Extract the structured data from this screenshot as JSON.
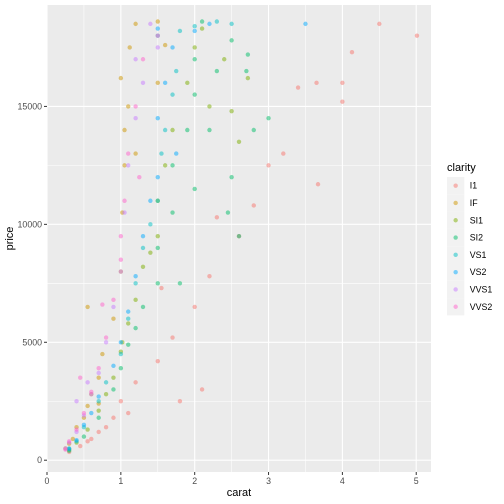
{
  "chart_data": {
    "type": "scatter",
    "title": "",
    "xlabel": "carat",
    "ylabel": "price",
    "xlim": [
      0,
      5.2
    ],
    "ylim": [
      -500,
      19300
    ],
    "x_ticks": [
      0,
      1,
      2,
      3,
      4,
      5
    ],
    "y_ticks": [
      0,
      5000,
      10000,
      15000
    ],
    "grid": true,
    "panel_background": "#ebebeb",
    "legend": {
      "title": "clarity",
      "position": "right",
      "entries": [
        {
          "label": "I1",
          "color": "#F8766D"
        },
        {
          "label": "IF",
          "color": "#CD9600"
        },
        {
          "label": "SI1",
          "color": "#7CAE00"
        },
        {
          "label": "SI2",
          "color": "#00BE67"
        },
        {
          "label": "VS1",
          "color": "#00BFC4"
        },
        {
          "label": "VS2",
          "color": "#00A9FF"
        },
        {
          "label": "VVS1",
          "color": "#C77CFF"
        },
        {
          "label": "VVS2",
          "color": "#FF61CC"
        }
      ]
    },
    "point_alpha": 0.5,
    "series": [
      {
        "name": "I1",
        "color": "#F8766D",
        "points": [
          [
            0.3,
            350
          ],
          [
            0.45,
            600
          ],
          [
            0.55,
            800
          ],
          [
            0.7,
            1200
          ],
          [
            0.9,
            1800
          ],
          [
            1.0,
            2500
          ],
          [
            1.2,
            3300
          ],
          [
            1.5,
            4200
          ],
          [
            1.7,
            5200
          ],
          [
            2.0,
            6500
          ],
          [
            2.2,
            7800
          ],
          [
            2.6,
            9500
          ],
          [
            2.8,
            10800
          ],
          [
            3.0,
            12500
          ],
          [
            3.2,
            13000
          ],
          [
            3.4,
            15800
          ],
          [
            3.65,
            16000
          ],
          [
            4.0,
            16000
          ],
          [
            4.0,
            15200
          ],
          [
            4.13,
            17300
          ],
          [
            4.5,
            18500
          ],
          [
            5.01,
            18000
          ],
          [
            3.67,
            11700
          ],
          [
            1.8,
            2500
          ],
          [
            2.3,
            10300
          ],
          [
            2.1,
            3000
          ],
          [
            1.55,
            7300
          ],
          [
            0.6,
            900
          ],
          [
            0.8,
            1400
          ],
          [
            1.1,
            2000
          ]
        ]
      },
      {
        "name": "IF",
        "color": "#CD9600",
        "points": [
          [
            0.25,
            500
          ],
          [
            0.3,
            700
          ],
          [
            0.35,
            900
          ],
          [
            0.4,
            1400
          ],
          [
            0.5,
            1800
          ],
          [
            0.55,
            2300
          ],
          [
            0.6,
            2800
          ],
          [
            0.7,
            3500
          ],
          [
            0.75,
            4500
          ],
          [
            0.9,
            6000
          ],
          [
            1.0,
            8000
          ],
          [
            1.02,
            10500
          ],
          [
            1.05,
            12500
          ],
          [
            1.1,
            15000
          ],
          [
            1.12,
            17500
          ],
          [
            1.2,
            18500
          ],
          [
            1.0,
            16200
          ],
          [
            1.05,
            14000
          ],
          [
            1.2,
            13000
          ],
          [
            1.5,
            16000
          ],
          [
            1.5,
            18600
          ],
          [
            1.6,
            17600
          ],
          [
            0.55,
            6500
          ],
          [
            0.7,
            2400
          ]
        ]
      },
      {
        "name": "SI1",
        "color": "#7CAE00",
        "points": [
          [
            0.3,
            450
          ],
          [
            0.4,
            750
          ],
          [
            0.55,
            1300
          ],
          [
            0.7,
            2100
          ],
          [
            0.8,
            2800
          ],
          [
            0.9,
            3500
          ],
          [
            1.0,
            4600
          ],
          [
            1.02,
            5000
          ],
          [
            1.1,
            5800
          ],
          [
            1.2,
            6800
          ],
          [
            1.3,
            8200
          ],
          [
            1.5,
            9500
          ],
          [
            1.5,
            11000
          ],
          [
            1.6,
            12500
          ],
          [
            1.7,
            14000
          ],
          [
            1.9,
            16000
          ],
          [
            2.0,
            17500
          ],
          [
            2.1,
            18300
          ],
          [
            2.2,
            15000
          ],
          [
            2.4,
            17000
          ],
          [
            2.5,
            14800
          ],
          [
            2.6,
            13500
          ],
          [
            2.72,
            16200
          ],
          [
            1.4,
            8800
          ]
        ]
      },
      {
        "name": "SI2",
        "color": "#00BE67",
        "points": [
          [
            0.3,
            400
          ],
          [
            0.5,
            1000
          ],
          [
            0.7,
            1800
          ],
          [
            0.9,
            3000
          ],
          [
            1.0,
            3900
          ],
          [
            1.1,
            4900
          ],
          [
            1.2,
            5600
          ],
          [
            1.3,
            6500
          ],
          [
            1.5,
            7500
          ],
          [
            1.5,
            9000
          ],
          [
            1.7,
            10500
          ],
          [
            1.7,
            12500
          ],
          [
            1.9,
            14000
          ],
          [
            2.0,
            15500
          ],
          [
            2.0,
            17000
          ],
          [
            2.1,
            18600
          ],
          [
            2.2,
            14000
          ],
          [
            2.3,
            16500
          ],
          [
            2.5,
            17800
          ],
          [
            2.5,
            12000
          ],
          [
            2.7,
            16500
          ],
          [
            2.72,
            17200
          ],
          [
            3.0,
            14500
          ],
          [
            2.0,
            11500
          ],
          [
            2.45,
            10500
          ],
          [
            2.6,
            9500
          ],
          [
            1.8,
            7500
          ],
          [
            2.8,
            14000
          ]
        ]
      },
      {
        "name": "VS1",
        "color": "#00BFC4",
        "points": [
          [
            0.3,
            500
          ],
          [
            0.4,
            800
          ],
          [
            0.5,
            1400
          ],
          [
            0.7,
            2500
          ],
          [
            0.8,
            3300
          ],
          [
            1.0,
            4500
          ],
          [
            1.1,
            6000
          ],
          [
            1.2,
            7500
          ],
          [
            1.3,
            9000
          ],
          [
            1.5,
            11000
          ],
          [
            1.55,
            13000
          ],
          [
            1.7,
            15500
          ],
          [
            1.75,
            16500
          ],
          [
            1.8,
            18200
          ],
          [
            1.5,
            18000
          ],
          [
            2.0,
            18400
          ],
          [
            2.3,
            18600
          ],
          [
            2.5,
            18500
          ],
          [
            1.4,
            10000
          ],
          [
            1.6,
            14000
          ]
        ]
      },
      {
        "name": "VS2",
        "color": "#00A9FF",
        "points": [
          [
            0.3,
            480
          ],
          [
            0.4,
            850
          ],
          [
            0.5,
            1500
          ],
          [
            0.6,
            2000
          ],
          [
            0.7,
            2700
          ],
          [
            0.9,
            4000
          ],
          [
            1.0,
            5000
          ],
          [
            1.1,
            6300
          ],
          [
            1.2,
            7800
          ],
          [
            1.3,
            9500
          ],
          [
            1.5,
            12000
          ],
          [
            1.5,
            14500
          ],
          [
            1.6,
            16000
          ],
          [
            1.7,
            17500
          ],
          [
            1.5,
            18300
          ],
          [
            2.0,
            18200
          ],
          [
            2.2,
            18500
          ],
          [
            3.5,
            18500
          ],
          [
            1.4,
            11000
          ],
          [
            1.75,
            13000
          ]
        ]
      },
      {
        "name": "VVS1",
        "color": "#C77CFF",
        "points": [
          [
            0.25,
            500
          ],
          [
            0.3,
            750
          ],
          [
            0.4,
            1200
          ],
          [
            0.5,
            1900
          ],
          [
            0.6,
            2800
          ],
          [
            0.7,
            3700
          ],
          [
            0.8,
            5000
          ],
          [
            0.9,
            6500
          ],
          [
            1.0,
            8000
          ],
          [
            1.05,
            10500
          ],
          [
            1.1,
            12500
          ],
          [
            1.2,
            14500
          ],
          [
            1.3,
            16000
          ],
          [
            1.5,
            17500
          ],
          [
            1.4,
            18500
          ],
          [
            1.2,
            17000
          ],
          [
            0.4,
            2500
          ],
          [
            0.55,
            3300
          ]
        ]
      },
      {
        "name": "VVS2",
        "color": "#FF61CC",
        "points": [
          [
            0.25,
            450
          ],
          [
            0.3,
            800
          ],
          [
            0.4,
            1300
          ],
          [
            0.5,
            2000
          ],
          [
            0.6,
            2900
          ],
          [
            0.7,
            3900
          ],
          [
            0.8,
            5200
          ],
          [
            0.9,
            6800
          ],
          [
            1.0,
            8500
          ],
          [
            1.05,
            11000
          ],
          [
            1.1,
            13000
          ],
          [
            1.2,
            15000
          ],
          [
            1.3,
            17000
          ],
          [
            1.5,
            18000
          ],
          [
            1.25,
            12000
          ],
          [
            0.45,
            3500
          ],
          [
            0.75,
            6600
          ],
          [
            1.0,
            9500
          ]
        ]
      }
    ]
  }
}
